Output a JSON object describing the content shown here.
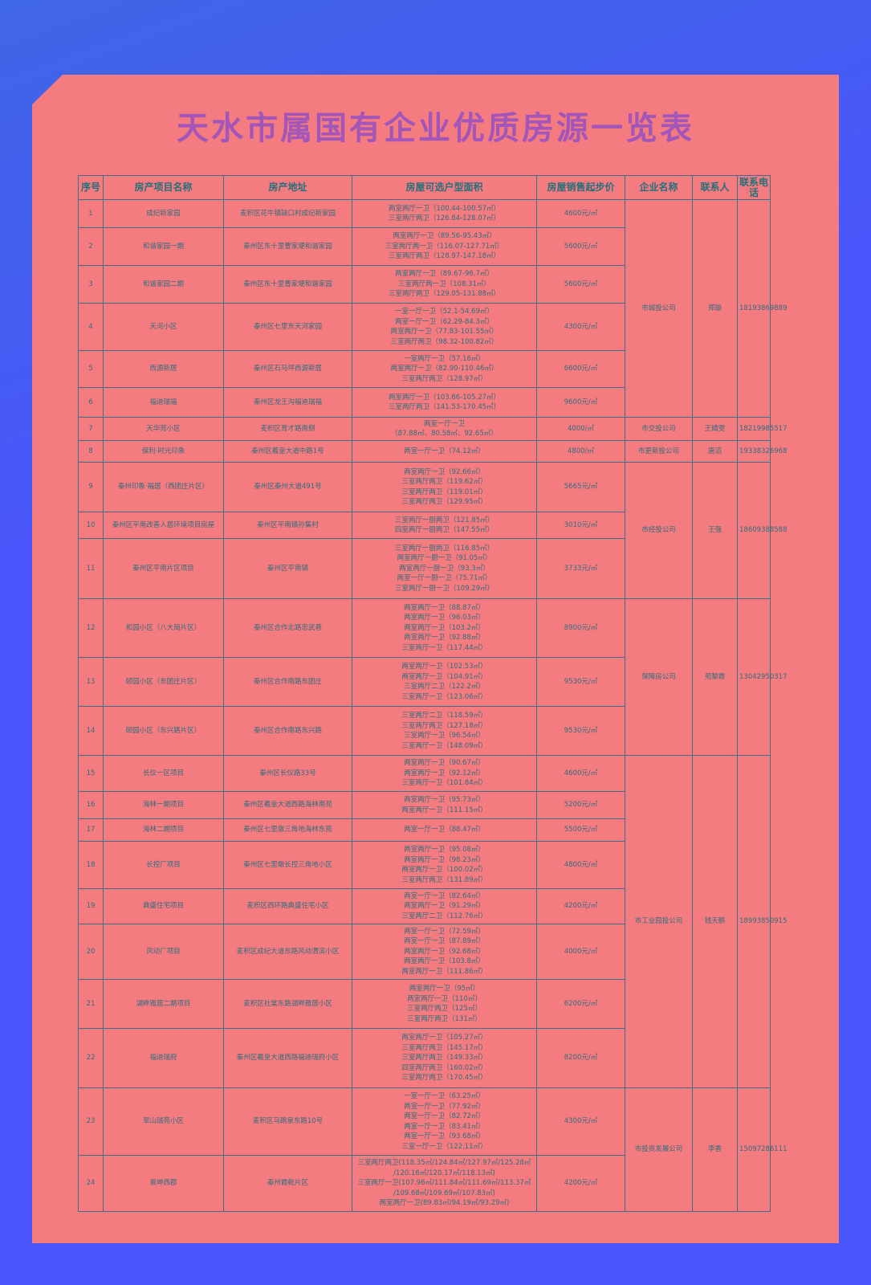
{
  "title": "天水市属国有企业优质房源一览表",
  "table": {
    "header": [
      "序号",
      "房产项目名称",
      "房产地址",
      "房屋可选户型面积",
      "房屋销售起步价",
      "企业名称",
      "联系人",
      "联系电话"
    ],
    "groups": [
      {
        "company": "市城投公司",
        "contact": "郑璇",
        "phone": "18193869889",
        "rows": [
          {
            "no": "1",
            "name": "成纪新家园",
            "address": "麦积区花牛镇缺口村成纪新家园",
            "types": [
              "两室两厅一卫（100.44-100.57㎡）",
              "三室两厅两卫（126.84-128.07㎡）"
            ],
            "price": "4600元/㎡"
          },
          {
            "no": "2",
            "name": "和谐家园一期",
            "address": "秦州区东十里曹家埂和谐家园",
            "types": [
              "两室两厅一卫（89.56-95.43㎡）",
              "三室两厅两一卫（116.07-127.71㎡）",
              "三室两厅两卫（128.97-147.18㎡）"
            ],
            "price": "5600元/㎡"
          },
          {
            "no": "3",
            "name": "和谐家园二期",
            "address": "秦州区东十里曹家埂和谐家园",
            "types": [
              "两室两厅一卫（89.67-96.7㎡）",
              "三室两厅两一卫（108.31㎡）",
              "三室两厅两卫（129.05-131.88㎡）"
            ],
            "price": "5600元/㎡"
          },
          {
            "no": "4",
            "name": "天河小区",
            "address": "秦州区七里东天河家园",
            "types": [
              "一室一厅一卫（52.1-54.69㎡）",
              "两室一厅一卫（62.29-84.3㎡）",
              "两室两厅一卫（77.83-101.55㎡）",
              "三室两厅两卫（98.32-100.82㎡）"
            ],
            "price": "4300元/㎡"
          },
          {
            "no": "5",
            "name": "西源新居",
            "address": "秦州区石马坪西源新居",
            "types": [
              "一室两厅一卫（57.16㎡）",
              "两室两厅一卫（82.90-110.46㎡）",
              "三室两厅两卫（128.97㎡）"
            ],
            "price": "6600元/㎡"
          },
          {
            "no": "6",
            "name": "福迪瑞福",
            "address": "秦州区龙王沟福迪瑞福",
            "types": [
              "两室两厅一卫（103.66-105.27㎡）",
              "三室两厅两卫（141.53-170.45㎡）"
            ],
            "price": "9600元/㎡"
          }
        ]
      },
      {
        "company": "市交投公司",
        "contact": "王婧雯",
        "phone": "18219985517",
        "rows": [
          {
            "no": "7",
            "name": "天华苑小区",
            "address": "麦积区育才路南侧",
            "types": [
              "两室一厅一卫",
              "（87.88㎡、80.58㎡、92.65㎡）"
            ],
            "price": "4000/㎡"
          }
        ]
      },
      {
        "company": "市更新投公司",
        "contact": "唐滔",
        "phone": "19338326968",
        "rows": [
          {
            "no": "8",
            "name": "保利·时光印象",
            "address": "秦州区羲皇大道中路1号",
            "types": [
              "两室一厅一卫（74.12㎡）"
            ],
            "price": "4800/㎡"
          }
        ]
      },
      {
        "company": "市经投公司",
        "contact": "王强",
        "phone": "18609388588",
        "rows": [
          {
            "no": "9",
            "name": "秦州印象·福居（西团庄片区）",
            "address": "秦州区秦州大道491号",
            "types": [
              "两室两厅一卫（92.66㎡）",
              "三室两厅两卫（119.62㎡）",
              "三室两厅两卫（119.01㎡）",
              "三室两厅两卫（129.95㎡）"
            ],
            "price": "5665元/㎡"
          },
          {
            "no": "10",
            "name": "秦州区平南改善人居环境项目房屋",
            "address": "秦州区平南镇孙集村",
            "types": [
              "三室两厅一厨两卫（121.85㎡）",
              "四室两厅一厨两卫（147.55㎡）"
            ],
            "price": "3010元/㎡"
          },
          {
            "no": "11",
            "name": "秦州区平南片区项目",
            "address": "秦州区平南镇",
            "types": [
              "三室两厅一厨两卫（116.85㎡）",
              "两室两厅一厨一卫（91.05㎡）",
              "两室两厅一厨一卫（93.3㎡）",
              "两室一厅一厨一卫（75.71㎡）",
              "三室两厅一厨一卫（109.29㎡）"
            ],
            "price": "3733元/㎡"
          }
        ]
      },
      {
        "company": "保障房公司",
        "contact": "苑黎霞",
        "phone": "13042950317",
        "rows": [
          {
            "no": "12",
            "name": "和园小区（八大局片区）",
            "address": "秦州区合作北路忠武巷",
            "types": [
              "两室两厅一卫（88.87㎡）",
              "两室两厅一卫（96.03㎡）",
              "两室两厅一卫（103.2㎡）",
              "两室两厅一卫（92.88㎡）",
              "三室两厅一卫（117.44㎡）"
            ],
            "price": "8900元/㎡"
          },
          {
            "no": "13",
            "name": "颐园小区（东团庄片区）",
            "address": "秦州区合作南路东团庄",
            "types": [
              "两室两厅一卫（102.53㎡）",
              "两室两厅一卫（104.91㎡）",
              "三室两厅二卫（122.2㎡）",
              "三室两厅一卫（123.06㎡）"
            ],
            "price": "9530元/㎡"
          },
          {
            "no": "14",
            "name": "颐园小区（东兴路片区）",
            "address": "秦州区合作南路东兴路",
            "types": [
              "三室两厅二卫（118.59㎡）",
              "三室两厅两卫（127.18㎡）",
              "三室两厅一卫（96.54㎡）",
              "三室两厅一卫（148.09㎡）"
            ],
            "price": "9530元/㎡"
          }
        ]
      },
      {
        "company": "市工业园投公司",
        "contact": "钱天鹏",
        "phone": "18993850915",
        "rows": [
          {
            "no": "15",
            "name": "长仪一区项目",
            "address": "秦州区长仪路33号",
            "types": [
              "两室两厅一卫（90.67㎡）",
              "两室两厅一卫（92.12㎡）",
              "三室两厅一卫（101.84㎡）"
            ],
            "price": "4600元/㎡"
          },
          {
            "no": "16",
            "name": "海林一期项目",
            "address": "秦州区羲皇大道西路海林南苑",
            "types": [
              "两室两厅一卫（95.73㎡）",
              "两室两厅一卫（111.15㎡）"
            ],
            "price": "5200元/㎡"
          },
          {
            "no": "17",
            "name": "海林二期项目",
            "address": "秦州区七里墩三角地海林东苑",
            "types": [
              "两室一厅一卫（88.47㎡）"
            ],
            "price": "5500元/㎡"
          },
          {
            "no": "18",
            "name": "长控厂项目",
            "address": "秦州区七里墩长控三角地小区",
            "types": [
              "两室两厅一卫（95.08㎡）",
              "两室两厅一卫（98.23㎡）",
              "两室两厅一卫（100.02㎡）",
              "三室两厅两卫（131.89㎡）"
            ],
            "price": "4800元/㎡"
          },
          {
            "no": "19",
            "name": "典盛住宅项目",
            "address": "麦积区西环路典盛住宅小区",
            "types": [
              "两室一厅一卫（82.64㎡）",
              "两室两厅一卫（91.29㎡）",
              "三室两厅二卫（112.76㎡）"
            ],
            "price": "4200元/㎡"
          },
          {
            "no": "20",
            "name": "风动厂项目",
            "address": "麦积区成纪大道东路风动渭滨小区",
            "types": [
              "两室一厅一卫（72.59㎡）",
              "两室一厅一卫（87.89㎡）",
              "两室两厅一卫（92.68㎡）",
              "两室两厅一卫（103.8㎡）",
              "两室两厅一卫（111.86㎡）"
            ],
            "price": "4000元/㎡"
          },
          {
            "no": "21",
            "name": "湖畔雅居二期项目",
            "address": "麦积区社棠东路湖畔雅居小区",
            "types": [
              "两室两厅一卫（95㎡）",
              "两室两厅一卫（110㎡）",
              "三室两厅两卫（125㎡）",
              "三室两厅两卫（131㎡）"
            ],
            "price": "6200元/㎡"
          },
          {
            "no": "22",
            "name": "福迪瑞府",
            "address": "秦州区羲皇大道西路福迪瑞府小区",
            "types": [
              "两室两厅一卫（105.27㎡）",
              "三室两厅两卫（145.17㎡）",
              "三室两厅两卫（149.33㎡）",
              "四室两厅两卫（160.02㎡）",
              "三室两厅两卫（170.45㎡）"
            ],
            "price": "8200元/㎡"
          }
        ]
      },
      {
        "company": "市投资发展公司",
        "contact": "李香",
        "phone": "15097286111",
        "rows": [
          {
            "no": "23",
            "name": "翠山瑞苑小区",
            "address": "麦积区马跑泉东路10号",
            "types": [
              "一室一厅一卫（63.25㎡）",
              "两室一厅一卫（77.92㎡）",
              "两室一厅一卫（82.72㎡）",
              "两室一厅一卫（83.41㎡）",
              "两室一厅一卫（93.68㎡）",
              "三室一厅一卫（122.11㎡）"
            ],
            "price": "4300元/㎡"
          },
          {
            "no": "24",
            "name": "景坤西郡",
            "address": "秦州霞乾片区",
            "types": [
              "三室两厅两卫(118.35㎡/124.84㎡/127.97㎡/125.28㎡",
              "/120.16㎡/120.17㎡/118.13㎡)",
              "三室两厅一卫(107.96㎡/111.84㎡/111.69㎡/113.37㎡",
              "/109.68㎡/109.69㎡/107.83㎡)",
              "两室两厅一卫(89.83㎡/94.19㎡/93.29㎡)"
            ],
            "price": "4200元/㎡"
          }
        ]
      }
    ]
  }
}
